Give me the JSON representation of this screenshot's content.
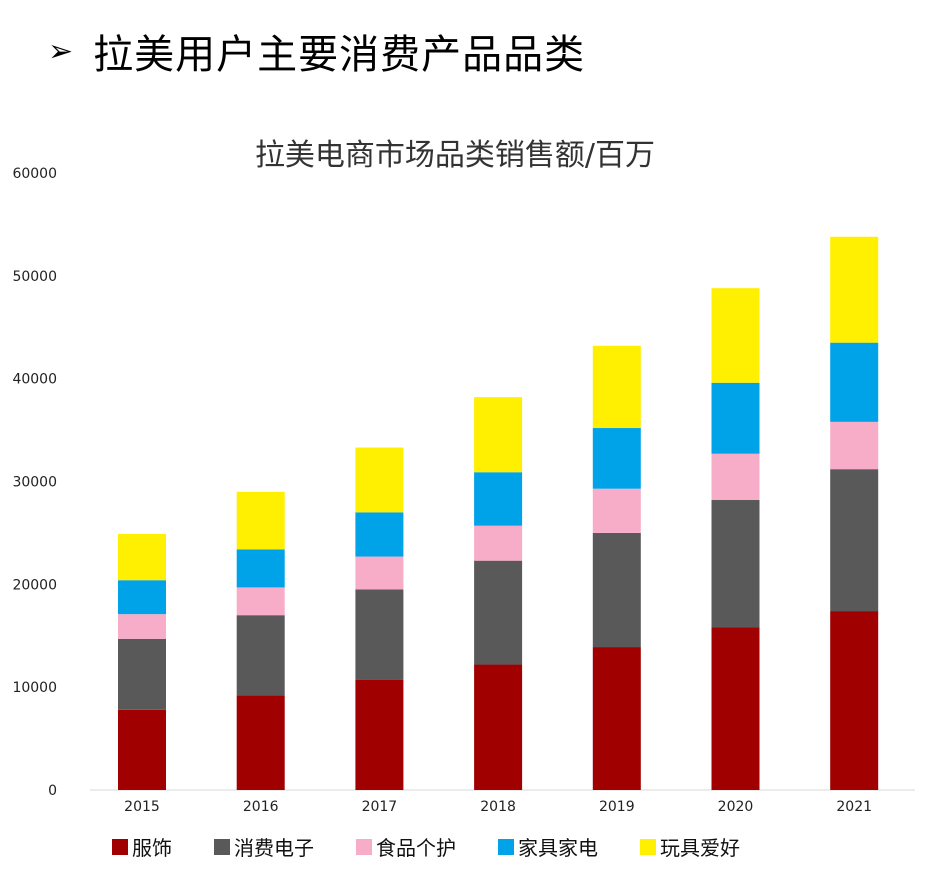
{
  "header": {
    "bullet": "➢",
    "title": "拉美用户主要消费产品品类"
  },
  "chart_data": {
    "type": "bar",
    "stacked": true,
    "title": "拉美电商市场品类销售额/百万",
    "xlabel": "",
    "ylabel": "",
    "ylim": [
      0,
      60000
    ],
    "y_ticks": [
      "0",
      "10000",
      "20000",
      "30000",
      "40000",
      "50000",
      "60000"
    ],
    "categories": [
      "2015",
      "2016",
      "2017",
      "2018",
      "2019",
      "2020",
      "2021"
    ],
    "series": [
      {
        "name": "服饰",
        "color": "#a00000",
        "values": [
          7800,
          9200,
          10700,
          12200,
          13900,
          15800,
          17400
        ]
      },
      {
        "name": "消费电子",
        "color": "#595959",
        "values": [
          6900,
          7800,
          8800,
          10100,
          11100,
          12400,
          13800
        ]
      },
      {
        "name": "食品个护",
        "color": "#f7adc8",
        "values": [
          2400,
          2700,
          3200,
          3400,
          4300,
          4500,
          4600
        ]
      },
      {
        "name": "家具家电",
        "color": "#00a2e8",
        "values": [
          3300,
          3700,
          4300,
          5200,
          5900,
          6900,
          7700
        ]
      },
      {
        "name": "玩具爱好",
        "color": "#ffef00",
        "values": [
          4500,
          5600,
          6300,
          7300,
          8000,
          9200,
          10300
        ]
      }
    ],
    "legend_position": "bottom",
    "grid": false
  }
}
